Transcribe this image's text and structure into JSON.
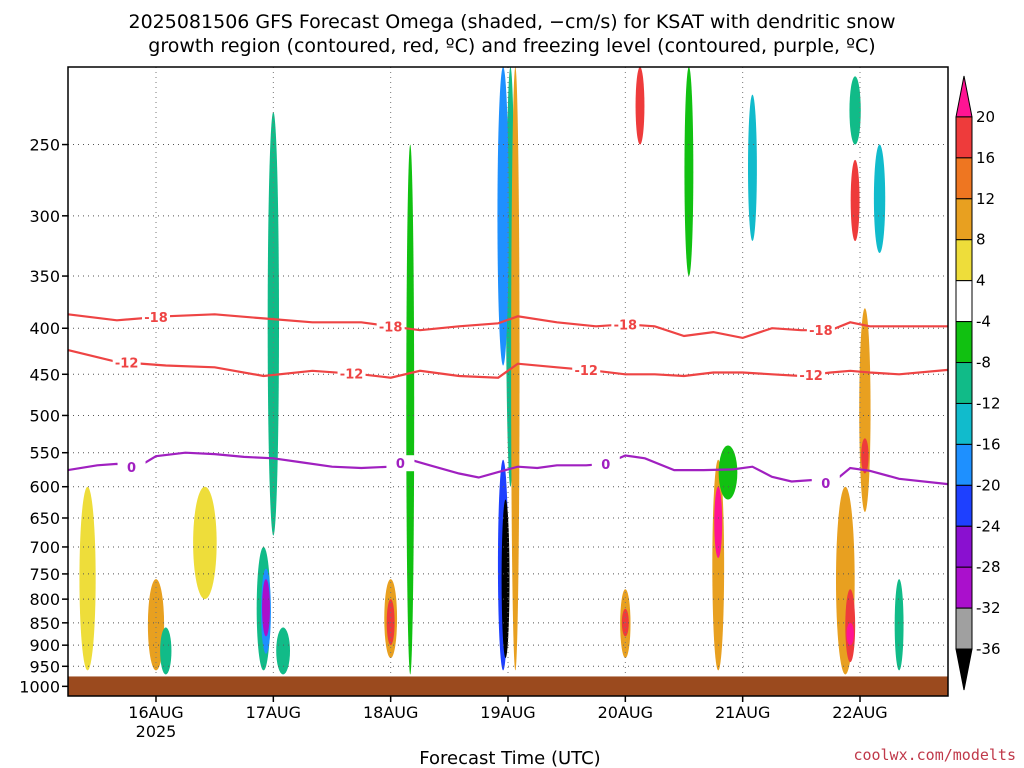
{
  "title_line1": "2025081506 GFS Forecast Omega (shaded, −cm/s) for KSAT with dendritic snow",
  "title_line2": "growth region (contoured, red, ºC) and freezing level (contoured, purple, ºC)",
  "credit": "coolwx.com/modelts",
  "chart_data": {
    "type": "heatmap",
    "title": "2025081506 GFS Forecast Omega (shaded, −cm/s) for KSAT with dendritic snow growth region (contoured, red, ºC) and freezing level (contoured, purple, ºC)",
    "xlabel": "Forecast Time (UTC)",
    "ylabel": "",
    "x_ticks": [
      {
        "label": "16AUG",
        "sublabel": "2025",
        "hours": 18
      },
      {
        "label": "17AUG",
        "sublabel": "",
        "hours": 42
      },
      {
        "label": "18AUG",
        "sublabel": "",
        "hours": 66
      },
      {
        "label": "19AUG",
        "sublabel": "",
        "hours": 90
      },
      {
        "label": "20AUG",
        "sublabel": "",
        "hours": 114
      },
      {
        "label": "21AUG",
        "sublabel": "",
        "hours": 138
      },
      {
        "label": "22AUG",
        "sublabel": "",
        "hours": 162
      }
    ],
    "xlim_hours": [
      0,
      180
    ],
    "y_scale": "log-pressure",
    "ylim_hpa": [
      1025,
      205
    ],
    "y_ticks": [
      250,
      300,
      350,
      400,
      450,
      500,
      550,
      600,
      650,
      700,
      750,
      800,
      850,
      900,
      950,
      1000
    ],
    "grid": true,
    "surface_hpa": 975,
    "surface_color": "#9b4a1e",
    "colorbar": {
      "labels": [
        "20",
        "16",
        "12",
        "8",
        "4",
        "-4",
        "-8",
        "-12",
        "-16",
        "-20",
        "-24",
        "-28",
        "-32",
        "-36"
      ],
      "colors": [
        "#ff1493",
        "#ee3b3b",
        "#ee7621",
        "#e8a020",
        "#eedd3a",
        "#ffffff",
        "#11c111",
        "#11bb88",
        "#11bbcc",
        "#1e90ff",
        "#1e40ff",
        "#8a10d0",
        "#aa10cc",
        "#a0a0a0",
        "#000000"
      ]
    },
    "omega_regions": [
      {
        "t": 4,
        "p0": 960,
        "p1": 600,
        "w": 2.5,
        "v": 6
      },
      {
        "t": 18,
        "p0": 960,
        "p1": 760,
        "w": 2.5,
        "v": 10
      },
      {
        "t": 20,
        "p0": 970,
        "p1": 860,
        "w": 1.5,
        "v": -8
      },
      {
        "t": 28,
        "p0": 800,
        "p1": 600,
        "w": 4,
        "v": 5
      },
      {
        "t": 40,
        "p0": 960,
        "p1": 700,
        "w": 2,
        "v": -10
      },
      {
        "t": 40.5,
        "p0": 920,
        "p1": 740,
        "w": 1.2,
        "v": -18
      },
      {
        "t": 40.5,
        "p0": 880,
        "p1": 760,
        "w": 0.8,
        "v": -28
      },
      {
        "t": 44,
        "p0": 970,
        "p1": 860,
        "w": 2,
        "v": -8
      },
      {
        "t": 42,
        "p0": 680,
        "p1": 230,
        "w": 1.5,
        "v": -8
      },
      {
        "t": 66,
        "p0": 930,
        "p1": 760,
        "w": 1.8,
        "v": 8
      },
      {
        "t": 66,
        "p0": 900,
        "p1": 800,
        "w": 0.8,
        "v": 16
      },
      {
        "t": 70,
        "p0": 970,
        "p1": 250,
        "w": 0.8,
        "v": -6
      },
      {
        "t": 89,
        "p0": 960,
        "p1": 560,
        "w": 1.3,
        "v": -20
      },
      {
        "t": 89.5,
        "p0": 930,
        "p1": 620,
        "w": 0.8,
        "v": -36
      },
      {
        "t": 90.5,
        "p0": 600,
        "p1": 205,
        "w": 1,
        "v": -8
      },
      {
        "t": 91.5,
        "p0": 960,
        "p1": 205,
        "w": 0.9,
        "v": 10
      },
      {
        "t": 89,
        "p0": 205,
        "p1": 440,
        "w": 1.5,
        "v": -16
      },
      {
        "t": 114,
        "p0": 930,
        "p1": 780,
        "w": 1.3,
        "v": 10
      },
      {
        "t": 114,
        "p0": 880,
        "p1": 820,
        "w": 0.6,
        "v": 18
      },
      {
        "t": 117,
        "p0": 250,
        "p1": 205,
        "w": 1,
        "v": 16
      },
      {
        "t": 127,
        "p0": 350,
        "p1": 205,
        "w": 1,
        "v": -6
      },
      {
        "t": 133,
        "p0": 960,
        "p1": 560,
        "w": 1.6,
        "v": 10
      },
      {
        "t": 133,
        "p0": 720,
        "p1": 600,
        "w": 0.8,
        "v": 20
      },
      {
        "t": 135,
        "p0": 620,
        "p1": 540,
        "w": 3,
        "v": -6
      },
      {
        "t": 140,
        "p0": 320,
        "p1": 220,
        "w": 1,
        "v": -12
      },
      {
        "t": 159,
        "p0": 970,
        "p1": 600,
        "w": 3,
        "v": 8
      },
      {
        "t": 160,
        "p0": 940,
        "p1": 780,
        "w": 1.2,
        "v": 16
      },
      {
        "t": 160,
        "p0": 900,
        "p1": 850,
        "w": 0.7,
        "v": 20
      },
      {
        "t": 163,
        "p0": 640,
        "p1": 380,
        "w": 1.5,
        "v": 10
      },
      {
        "t": 163,
        "p0": 580,
        "p1": 530,
        "w": 0.7,
        "v": 18
      },
      {
        "t": 161,
        "p0": 320,
        "p1": 260,
        "w": 1,
        "v": 16
      },
      {
        "t": 161,
        "p0": 250,
        "p1": 210,
        "w": 1.5,
        "v": -10
      },
      {
        "t": 166,
        "p0": 330,
        "p1": 250,
        "w": 1.5,
        "v": -12
      },
      {
        "t": 170,
        "p0": 960,
        "p1": 760,
        "w": 1,
        "v": -8
      }
    ],
    "contours": [
      {
        "label": "-18",
        "color": "#ee4444",
        "t": [
          0,
          10,
          20,
          30,
          40,
          50,
          60,
          66,
          72,
          80,
          88,
          92,
          100,
          108,
          114,
          120,
          126,
          132,
          138,
          144,
          150,
          156,
          160,
          164,
          170,
          180
        ],
        "p": [
          386,
          392,
          388,
          386,
          390,
          394,
          394,
          398,
          402,
          398,
          395,
          388,
          394,
          398,
          396,
          398,
          408,
          404,
          410,
          400,
          402,
          402,
          394,
          398,
          398,
          398
        ],
        "labels_at": [
          18,
          66,
          114,
          154
        ]
      },
      {
        "label": "-12",
        "color": "#ee4444",
        "t": [
          0,
          10,
          20,
          30,
          40,
          50,
          60,
          66,
          72,
          80,
          88,
          92,
          100,
          108,
          114,
          120,
          126,
          132,
          138,
          144,
          150,
          156,
          160,
          164,
          170,
          180
        ],
        "p": [
          423,
          436,
          440,
          442,
          452,
          446,
          450,
          454,
          446,
          452,
          454,
          438,
          442,
          446,
          450,
          450,
          452,
          448,
          448,
          450,
          452,
          448,
          446,
          448,
          450,
          445
        ],
        "labels_at": [
          12,
          58,
          106,
          152
        ]
      },
      {
        "label": "0",
        "color": "#a020c0",
        "t": [
          0,
          6,
          10,
          14,
          18,
          24,
          30,
          36,
          42,
          48,
          54,
          60,
          66,
          70,
          74,
          80,
          84,
          88,
          92,
          96,
          100,
          106,
          110,
          114,
          118,
          124,
          130,
          136,
          140,
          144,
          148,
          152,
          156,
          160,
          164,
          170,
          180
        ],
        "p": [
          575,
          568,
          566,
          572,
          555,
          550,
          552,
          556,
          558,
          564,
          570,
          572,
          570,
          560,
          568,
          580,
          586,
          578,
          570,
          572,
          568,
          568,
          566,
          554,
          558,
          575,
          575,
          574,
          570,
          585,
          592,
          590,
          596,
          572,
          576,
          588,
          596
        ],
        "labels_at": [
          13,
          68,
          110,
          155
        ]
      }
    ]
  }
}
